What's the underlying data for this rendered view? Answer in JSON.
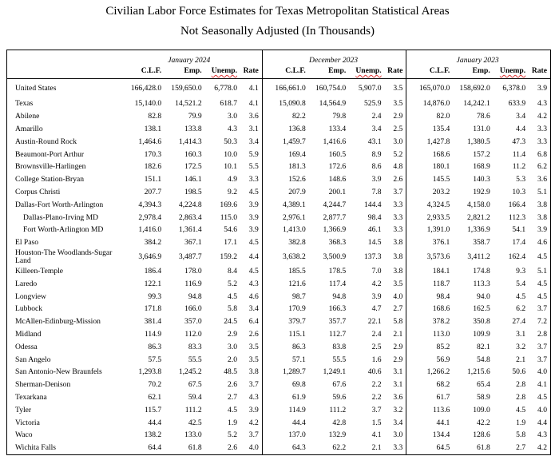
{
  "title": "Civilian Labor Force Estimates for Texas Metropolitan Statistical Areas",
  "subtitle": "Not Seasonally Adjusted (In Thousands)",
  "table": {
    "periods": [
      "January 2024",
      "December 2023",
      "January 2023"
    ],
    "columns": [
      "C.L.F.",
      "Emp.",
      "Unemp.",
      "Rate"
    ],
    "rows": [
      {
        "name": "United States",
        "values": [
          "166,428.0",
          "159,650.0",
          "6,778.0",
          "4.1",
          "166,661.0",
          "160,754.0",
          "5,907.0",
          "3.5",
          "165,070.0",
          "158,692.0",
          "6,378.0",
          "3.9"
        ]
      },
      {
        "name": "Texas",
        "values": [
          "15,140.0",
          "14,521.2",
          "618.7",
          "4.1",
          "15,090.8",
          "14,564.9",
          "525.9",
          "3.5",
          "14,876.0",
          "14,242.1",
          "633.9",
          "4.3"
        ]
      },
      {
        "name": "Abilene",
        "values": [
          "82.8",
          "79.9",
          "3.0",
          "3.6",
          "82.2",
          "79.8",
          "2.4",
          "2.9",
          "82.0",
          "78.6",
          "3.4",
          "4.2"
        ]
      },
      {
        "name": "Amarillo",
        "values": [
          "138.1",
          "133.8",
          "4.3",
          "3.1",
          "136.8",
          "133.4",
          "3.4",
          "2.5",
          "135.4",
          "131.0",
          "4.4",
          "3.3"
        ]
      },
      {
        "name": "Austin-Round Rock",
        "values": [
          "1,464.6",
          "1,414.3",
          "50.3",
          "3.4",
          "1,459.7",
          "1,416.6",
          "43.1",
          "3.0",
          "1,427.8",
          "1,380.5",
          "47.3",
          "3.3"
        ]
      },
      {
        "name": "Beaumont-Port Arthur",
        "values": [
          "170.3",
          "160.3",
          "10.0",
          "5.9",
          "169.4",
          "160.5",
          "8.9",
          "5.2",
          "168.6",
          "157.2",
          "11.4",
          "6.8"
        ]
      },
      {
        "name": "Brownsville-Harlingen",
        "values": [
          "182.6",
          "172.5",
          "10.1",
          "5.5",
          "181.3",
          "172.6",
          "8.6",
          "4.8",
          "180.1",
          "168.9",
          "11.2",
          "6.2"
        ]
      },
      {
        "name": "College Station-Bryan",
        "values": [
          "151.1",
          "146.1",
          "4.9",
          "3.3",
          "152.6",
          "148.6",
          "3.9",
          "2.6",
          "145.5",
          "140.3",
          "5.3",
          "3.6"
        ]
      },
      {
        "name": "Corpus Christi",
        "values": [
          "207.7",
          "198.5",
          "9.2",
          "4.5",
          "207.9",
          "200.1",
          "7.8",
          "3.7",
          "203.2",
          "192.9",
          "10.3",
          "5.1"
        ]
      },
      {
        "name": "Dallas-Fort Worth-Arlington",
        "values": [
          "4,394.3",
          "4,224.8",
          "169.6",
          "3.9",
          "4,389.1",
          "4,244.7",
          "144.4",
          "3.3",
          "4,324.5",
          "4,158.0",
          "166.4",
          "3.8"
        ]
      },
      {
        "name": "Dallas-Plano-Irving MD",
        "values": [
          "2,978.4",
          "2,863.4",
          "115.0",
          "3.9",
          "2,976.1",
          "2,877.7",
          "98.4",
          "3.3",
          "2,933.5",
          "2,821.2",
          "112.3",
          "3.8"
        ]
      },
      {
        "name": "Fort Worth-Arlington MD",
        "values": [
          "1,416.0",
          "1,361.4",
          "54.6",
          "3.9",
          "1,413.0",
          "1,366.9",
          "46.1",
          "3.3",
          "1,391.0",
          "1,336.9",
          "54.1",
          "3.9"
        ]
      },
      {
        "name": "El Paso",
        "values": [
          "384.2",
          "367.1",
          "17.1",
          "4.5",
          "382.8",
          "368.3",
          "14.5",
          "3.8",
          "376.1",
          "358.7",
          "17.4",
          "4.6"
        ]
      },
      {
        "name": "Houston-The Woodlands-Sugar Land",
        "values": [
          "3,646.9",
          "3,487.7",
          "159.2",
          "4.4",
          "3,638.2",
          "3,500.9",
          "137.3",
          "3.8",
          "3,573.6",
          "3,411.2",
          "162.4",
          "4.5"
        ]
      },
      {
        "name": "Killeen-Temple",
        "values": [
          "186.4",
          "178.0",
          "8.4",
          "4.5",
          "185.5",
          "178.5",
          "7.0",
          "3.8",
          "184.1",
          "174.8",
          "9.3",
          "5.1"
        ]
      },
      {
        "name": "Laredo",
        "values": [
          "122.1",
          "116.9",
          "5.2",
          "4.3",
          "121.6",
          "117.4",
          "4.2",
          "3.5",
          "118.7",
          "113.3",
          "5.4",
          "4.5"
        ]
      },
      {
        "name": "Longview",
        "values": [
          "99.3",
          "94.8",
          "4.5",
          "4.6",
          "98.7",
          "94.8",
          "3.9",
          "4.0",
          "98.4",
          "94.0",
          "4.5",
          "4.5"
        ]
      },
      {
        "name": "Lubbock",
        "values": [
          "171.8",
          "166.0",
          "5.8",
          "3.4",
          "170.9",
          "166.3",
          "4.7",
          "2.7",
          "168.6",
          "162.5",
          "6.2",
          "3.7"
        ]
      },
      {
        "name": "McAllen-Edinburg-Mission",
        "values": [
          "381.4",
          "357.0",
          "24.5",
          "6.4",
          "379.7",
          "357.7",
          "22.1",
          "5.8",
          "378.2",
          "350.8",
          "27.4",
          "7.2"
        ]
      },
      {
        "name": "Midland",
        "values": [
          "114.9",
          "112.0",
          "2.9",
          "2.6",
          "115.1",
          "112.7",
          "2.4",
          "2.1",
          "113.0",
          "109.9",
          "3.1",
          "2.8"
        ]
      },
      {
        "name": "Odessa",
        "values": [
          "86.3",
          "83.3",
          "3.0",
          "3.5",
          "86.3",
          "83.8",
          "2.5",
          "2.9",
          "85.2",
          "82.1",
          "3.2",
          "3.7"
        ]
      },
      {
        "name": "San Angelo",
        "values": [
          "57.5",
          "55.5",
          "2.0",
          "3.5",
          "57.1",
          "55.5",
          "1.6",
          "2.9",
          "56.9",
          "54.8",
          "2.1",
          "3.7"
        ]
      },
      {
        "name": "San Antonio-New Braunfels",
        "values": [
          "1,293.8",
          "1,245.2",
          "48.5",
          "3.8",
          "1,289.7",
          "1,249.1",
          "40.6",
          "3.1",
          "1,266.2",
          "1,215.6",
          "50.6",
          "4.0"
        ]
      },
      {
        "name": "Sherman-Denison",
        "values": [
          "70.2",
          "67.5",
          "2.6",
          "3.7",
          "69.8",
          "67.6",
          "2.2",
          "3.1",
          "68.2",
          "65.4",
          "2.8",
          "4.1"
        ]
      },
      {
        "name": "Texarkana",
        "values": [
          "62.1",
          "59.4",
          "2.7",
          "4.3",
          "61.9",
          "59.6",
          "2.2",
          "3.6",
          "61.7",
          "58.9",
          "2.8",
          "4.5"
        ]
      },
      {
        "name": "Tyler",
        "values": [
          "115.7",
          "111.2",
          "4.5",
          "3.9",
          "114.9",
          "111.2",
          "3.7",
          "3.2",
          "113.6",
          "109.0",
          "4.5",
          "4.0"
        ]
      },
      {
        "name": "Victoria",
        "values": [
          "44.4",
          "42.5",
          "1.9",
          "4.2",
          "44.4",
          "42.8",
          "1.5",
          "3.4",
          "44.1",
          "42.2",
          "1.9",
          "4.4"
        ]
      },
      {
        "name": "Waco",
        "values": [
          "138.2",
          "133.0",
          "5.2",
          "3.7",
          "137.0",
          "132.9",
          "4.1",
          "3.0",
          "134.4",
          "128.6",
          "5.8",
          "4.3"
        ]
      },
      {
        "name": "Wichita Falls",
        "values": [
          "64.4",
          "61.8",
          "2.6",
          "4.0",
          "64.3",
          "62.2",
          "2.1",
          "3.3",
          "64.5",
          "61.8",
          "2.7",
          "4.2"
        ]
      }
    ]
  }
}
